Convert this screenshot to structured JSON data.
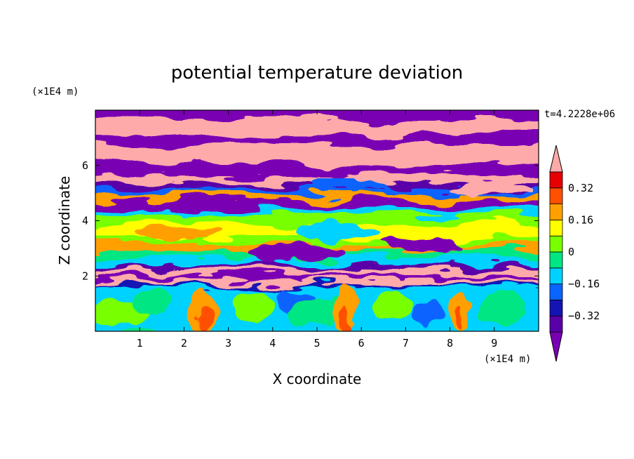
{
  "chart_data": {
    "type": "heatmap",
    "title": "potential temperature deviation",
    "xlabel": "X coordinate",
    "ylabel": "Z coordinate",
    "x_unit": "(×1E4 m)",
    "y_unit": "(×1E4 m)",
    "time_label": "t=4.2228e+06",
    "xlim": [
      0,
      10
    ],
    "ylim": [
      0,
      8
    ],
    "x_ticks": [
      1,
      2,
      3,
      4,
      5,
      6,
      7,
      8,
      9
    ],
    "y_ticks": [
      2,
      4,
      6
    ],
    "colorbar": {
      "levels": [
        -0.4,
        -0.32,
        -0.24,
        -0.16,
        -0.08,
        0,
        0.08,
        0.16,
        0.24,
        0.32,
        0.4
      ],
      "labeled_levels": [
        0.32,
        0.16,
        0,
        -0.16,
        -0.32
      ],
      "labels": [
        "0.32",
        "0.16",
        "0",
        "−0.16",
        "−0.32"
      ],
      "colors": [
        "#7a00b4",
        "#5a00a8",
        "#1414b4",
        "#0a64ff",
        "#00d2ff",
        "#00e682",
        "#78ff00",
        "#ffff00",
        "#ffa000",
        "#ff5000",
        "#e60000",
        "#ffaaaa"
      ],
      "extend": "both"
    },
    "bands": [
      {
        "z_range": [
          7.2,
          8.0
        ],
        "description": "alternating purple and pink"
      },
      {
        "z_range": [
          5.5,
          7.2
        ],
        "description": "mostly pink with purple streaks"
      },
      {
        "z_range": [
          4.8,
          5.5
        ],
        "description": "purple, blue, orange mixed"
      },
      {
        "z_range": [
          3.0,
          4.8
        ],
        "description": "yellow, green, cyan"
      },
      {
        "z_range": [
          1.6,
          3.0
        ],
        "description": "purple and pink streaks"
      },
      {
        "z_range": [
          0.0,
          1.6
        ],
        "description": "cyan and green turbulent eddies with orange/red plumes"
      }
    ]
  }
}
